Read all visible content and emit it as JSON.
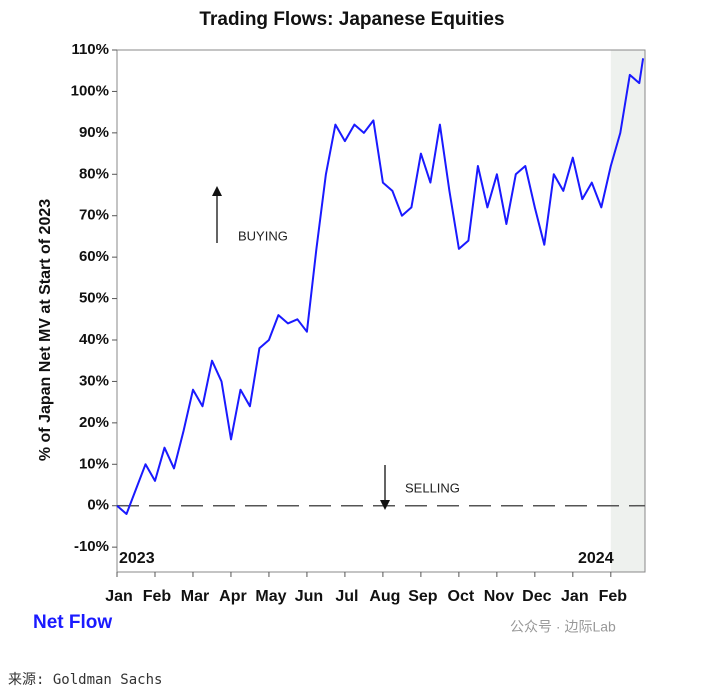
{
  "chart_data": {
    "type": "line",
    "title": "Trading Flows: Japanese Equities",
    "ylabel": "% of Japan Net MV at Start of 2023",
    "x": [
      0,
      0.25,
      0.5,
      0.75,
      1,
      1.25,
      1.5,
      1.75,
      2,
      2.25,
      2.5,
      2.75,
      3,
      3.25,
      3.5,
      3.75,
      4,
      4.25,
      4.5,
      4.75,
      5,
      5.25,
      5.5,
      5.75,
      6,
      6.25,
      6.5,
      6.75,
      7,
      7.25,
      7.5,
      7.75,
      8,
      8.25,
      8.5,
      8.75,
      9,
      9.25,
      9.5,
      9.75,
      10,
      10.25,
      10.5,
      10.75,
      11,
      11.25,
      11.5,
      11.75,
      12,
      12.25,
      12.5,
      12.75,
      13,
      13.25,
      13.5,
      13.75,
      13.85
    ],
    "series": [
      {
        "name": "Net Flow",
        "color": "#1a1aff",
        "values": [
          0,
          -2,
          4,
          10,
          6,
          14,
          9,
          18,
          28,
          24,
          35,
          30,
          16,
          28,
          24,
          38,
          40,
          46,
          44,
          45,
          42,
          62,
          80,
          92,
          88,
          92,
          90,
          93,
          78,
          76,
          70,
          72,
          85,
          78,
          92,
          76,
          62,
          64,
          82,
          72,
          80,
          68,
          80,
          82,
          72,
          63,
          80,
          76,
          84,
          74,
          78,
          72,
          82,
          90,
          104,
          102,
          108
        ]
      }
    ],
    "xlim": [
      0,
      13.9
    ],
    "xticks": [
      {
        "value": 0,
        "label": "Jan"
      },
      {
        "value": 1,
        "label": "Feb"
      },
      {
        "value": 2,
        "label": "Mar"
      },
      {
        "value": 3,
        "label": "Apr"
      },
      {
        "value": 4,
        "label": "May"
      },
      {
        "value": 5,
        "label": "Jun"
      },
      {
        "value": 6,
        "label": "Jul"
      },
      {
        "value": 7,
        "label": "Aug"
      },
      {
        "value": 8,
        "label": "Sep"
      },
      {
        "value": 9,
        "label": "Oct"
      },
      {
        "value": 10,
        "label": "Nov"
      },
      {
        "value": 11,
        "label": "Dec"
      },
      {
        "value": 12,
        "label": "Jan"
      },
      {
        "value": 13,
        "label": "Feb"
      }
    ],
    "ylim": [
      -16,
      110
    ],
    "yticks": [
      {
        "value": -10,
        "label": "-10%"
      },
      {
        "value": 0,
        "label": "0%"
      },
      {
        "value": 10,
        "label": "10%"
      },
      {
        "value": 20,
        "label": "20%"
      },
      {
        "value": 30,
        "label": "30%"
      },
      {
        "value": 40,
        "label": "40%"
      },
      {
        "value": 50,
        "label": "50%"
      },
      {
        "value": 60,
        "label": "60%"
      },
      {
        "value": 70,
        "label": "70%"
      },
      {
        "value": 80,
        "label": "80%"
      },
      {
        "value": 90,
        "label": "90%"
      },
      {
        "value": 100,
        "label": "100%"
      },
      {
        "value": 110,
        "label": "110%"
      }
    ],
    "year_labels": [
      "2023",
      "2024"
    ],
    "annotations": [
      "BUYING",
      "SELLING"
    ],
    "shaded_xrange": [
      13,
      13.9
    ],
    "zero_line": true
  },
  "footer": {
    "watermark": "公众号 · 边际Lab",
    "source": "来源: Goldman Sachs"
  }
}
